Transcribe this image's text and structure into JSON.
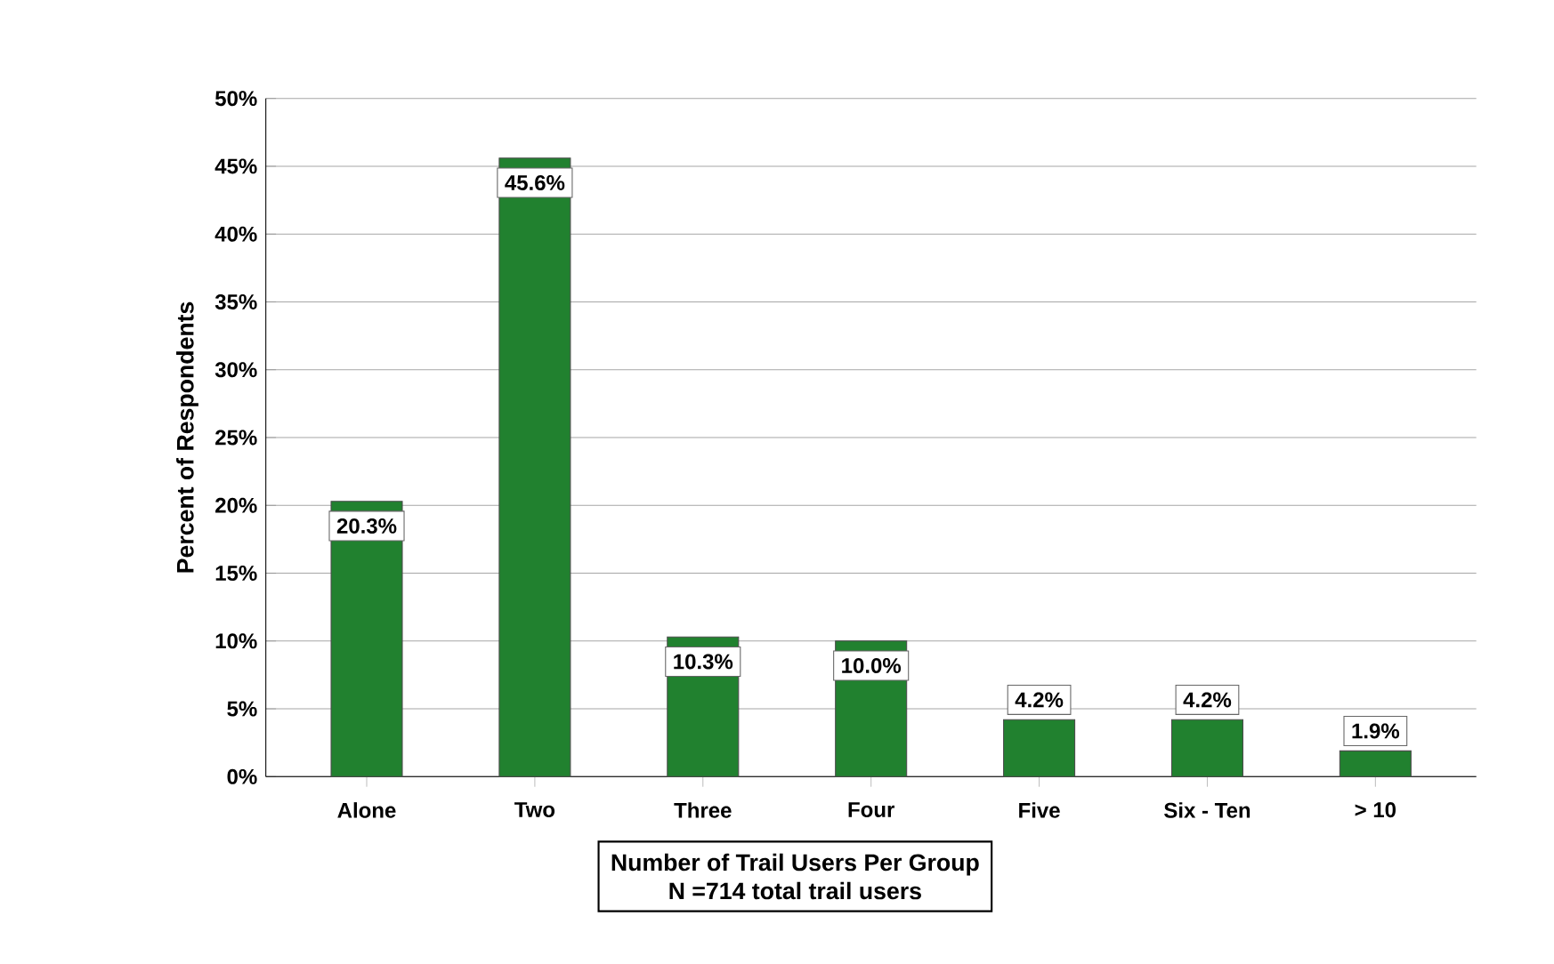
{
  "chart_data": {
    "type": "bar",
    "ylabel": "Percent of Respondents",
    "xlabel": "Number of Trail Users Per Group",
    "annotations": [
      "N =714 total trail users"
    ],
    "categories": [
      "Alone",
      "Two",
      "Three",
      "Four",
      "Five",
      "Six - Ten",
      "> 10"
    ],
    "values": [
      20.3,
      45.6,
      10.3,
      10.0,
      4.2,
      4.2,
      1.9
    ],
    "value_labels": [
      "20.3%",
      "45.6%",
      "10.3%",
      "10.0%",
      "4.2%",
      "4.2%",
      "1.9%"
    ],
    "color": "#21812f",
    "ylim": [
      0,
      50
    ],
    "yticks": [
      {
        "value": 0,
        "label": "0%"
      },
      {
        "value": 5,
        "label": "5%"
      },
      {
        "value": 10,
        "label": "10%"
      },
      {
        "value": 15,
        "label": "15%"
      },
      {
        "value": 20,
        "label": "20%"
      },
      {
        "value": 25,
        "label": "25%"
      },
      {
        "value": 30,
        "label": "30%"
      },
      {
        "value": 35,
        "label": "35%"
      },
      {
        "value": 40,
        "label": "40%"
      },
      {
        "value": 45,
        "label": "45%"
      },
      {
        "value": 50,
        "label": "50%"
      }
    ],
    "grid": "y"
  }
}
